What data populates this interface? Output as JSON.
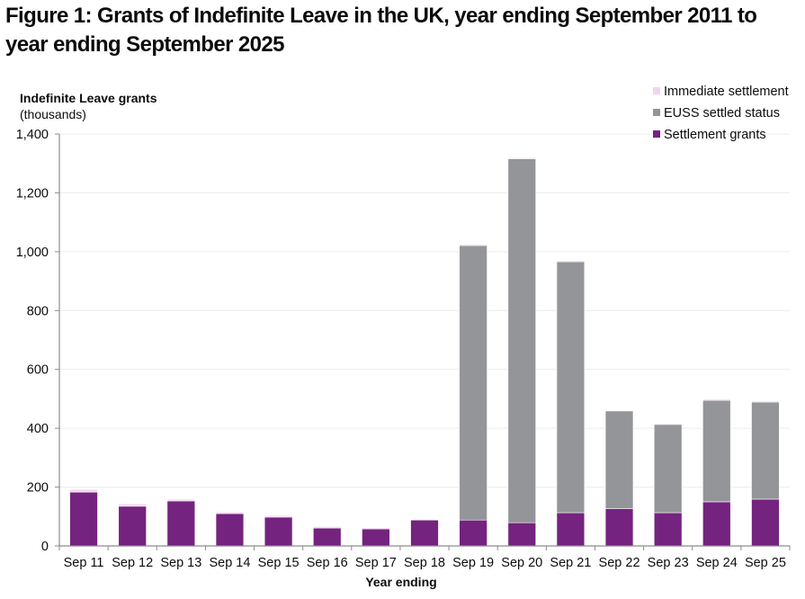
{
  "title": "Figure 1: Grants of Indefinite Leave in the UK, year ending September 2011 to year ending September 2025",
  "chart_data": {
    "type": "bar",
    "stacked": true,
    "title": "Figure 1: Grants of Indefinite Leave in the UK, year ending September 2011 to year ending September 2025",
    "ylabel": "Indefinite Leave grants",
    "ylabel_unit": "(thousands)",
    "xlabel": "Year ending",
    "ylim": [
      0,
      1400
    ],
    "yticks": [
      0,
      200,
      400,
      600,
      800,
      1000,
      1200,
      1400
    ],
    "ytick_labels": [
      "0",
      "200",
      "400",
      "600",
      "800",
      "1,000",
      "1,200",
      "1,400"
    ],
    "grid": true,
    "legend_position": "top-right",
    "categories": [
      "Sep 11",
      "Sep 12",
      "Sep 13",
      "Sep 14",
      "Sep 15",
      "Sep 16",
      "Sep 17",
      "Sep 18",
      "Sep 19",
      "Sep 20",
      "Sep 21",
      "Sep 22",
      "Sep 23",
      "Sep 24",
      "Sep 25"
    ],
    "series": [
      {
        "name": "Settlement grants",
        "color": "#74237f",
        "values": [
          183,
          135,
          153,
          110,
          98,
          61,
          58,
          88,
          88,
          79,
          113,
          127,
          113,
          150,
          159
        ]
      },
      {
        "name": "EUSS settled status",
        "color": "#939598",
        "values": [
          0,
          0,
          0,
          0,
          0,
          0,
          0,
          0,
          933,
          1237,
          853,
          332,
          300,
          345,
          330
        ]
      },
      {
        "name": "Immediate settlement",
        "color": "#f3d3f0",
        "values": [
          9,
          8,
          6,
          5,
          5,
          5,
          4,
          2,
          4,
          3,
          4,
          2,
          3,
          4,
          4
        ]
      }
    ],
    "legend": [
      "Immediate settlement",
      "EUSS settled status",
      "Settlement grants"
    ]
  }
}
